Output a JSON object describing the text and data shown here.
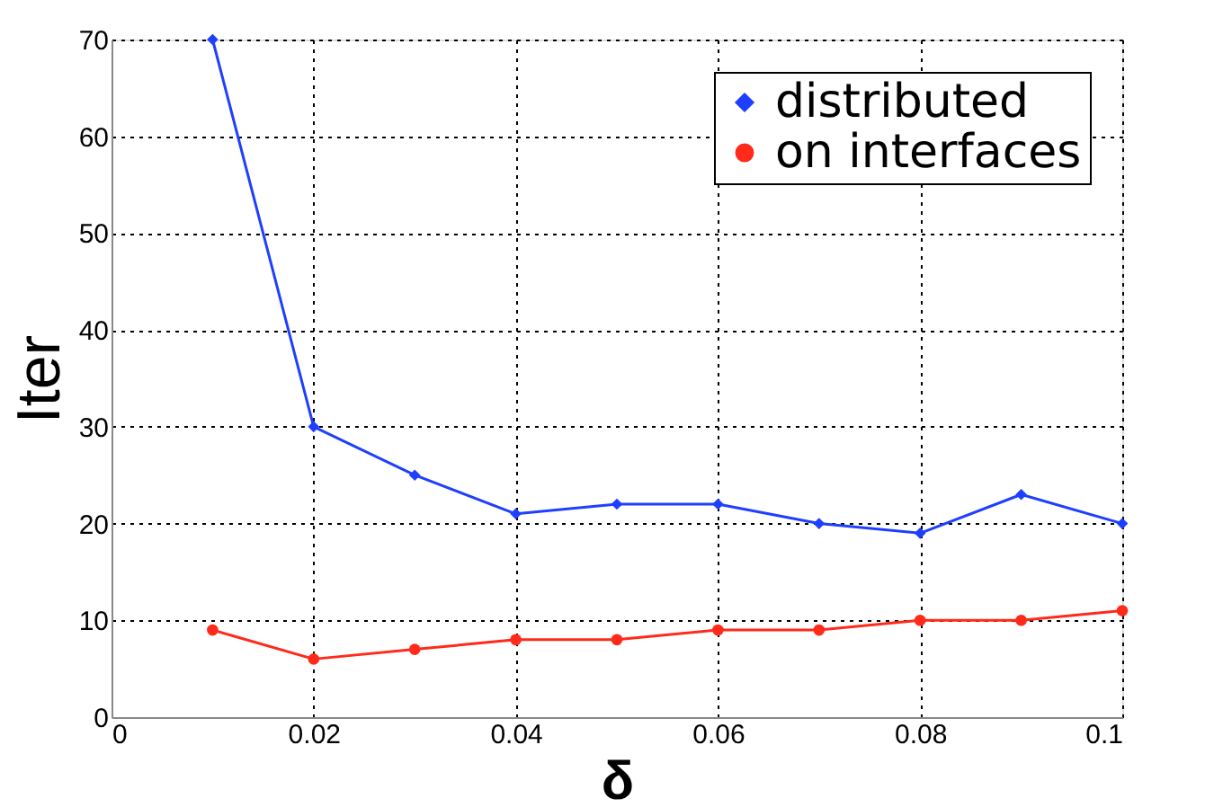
{
  "chart_data": {
    "type": "line",
    "xlabel": "δ",
    "ylabel": "Iter",
    "x": [
      0.01,
      0.02,
      0.03,
      0.04,
      0.05,
      0.06,
      0.07,
      0.08,
      0.09,
      0.1
    ],
    "series": [
      {
        "name": "distributed",
        "color": "#1f3fff",
        "marker": "diamond",
        "values": [
          70,
          30,
          25,
          21,
          22,
          22,
          20,
          19,
          23,
          20
        ]
      },
      {
        "name": "on interfaces",
        "color": "#ff2a1a",
        "marker": "circle",
        "values": [
          9,
          6,
          7,
          8,
          8,
          9,
          9,
          10,
          10,
          11
        ]
      }
    ],
    "xlim": [
      0,
      0.1
    ],
    "xticks": [
      0,
      0.02,
      0.04,
      0.06,
      0.08,
      0.1
    ],
    "ylim": [
      0,
      70
    ],
    "yticks": [
      0,
      10,
      20,
      30,
      40,
      50,
      60,
      70
    ],
    "grid": true,
    "legend": "top right",
    "line_style": "solid"
  }
}
